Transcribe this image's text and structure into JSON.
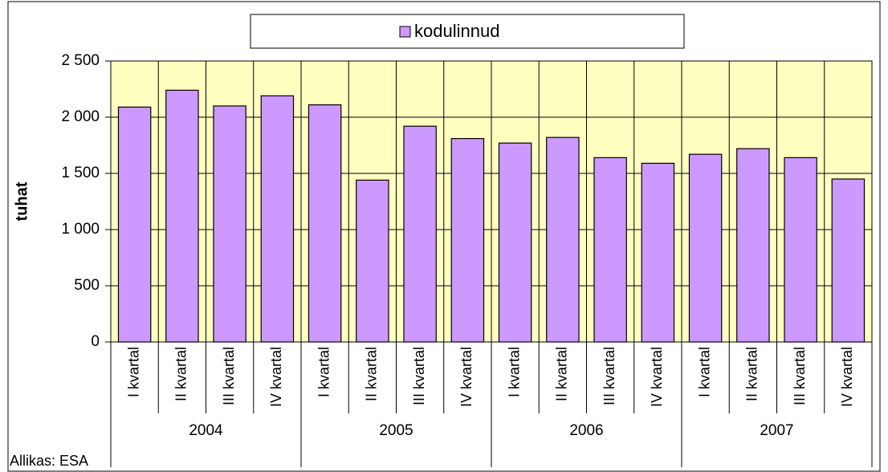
{
  "chart_data": {
    "type": "bar",
    "y_label": "tuhat",
    "source": "Allikas: ESA",
    "categories": [
      "I kvartal",
      "II kvartal",
      "III kvartal",
      "IV kvartal",
      "I kvartal",
      "II kvartal",
      "III kvartal",
      "IV kvartal",
      "I kvartal",
      "II kvartal",
      "III kvartal",
      "IV kvartal",
      "I kvartal",
      "II kvartal",
      "III kvartal",
      "IV kvartal"
    ],
    "groups": [
      "2004",
      "2005",
      "2006",
      "2007"
    ],
    "series": [
      {
        "name": "kodulinnud",
        "color": "#cc99ff",
        "values": [
          2090,
          2240,
          2100,
          2190,
          2110,
          1440,
          1920,
          1810,
          1770,
          1820,
          1640,
          1590,
          1670,
          1720,
          1640,
          1450
        ]
      }
    ],
    "ylim": [
      0,
      2500
    ],
    "yticks": [
      0,
      500,
      {
        "value": 1000,
        "label": "1 000"
      },
      {
        "value": 1500,
        "label": "1 500"
      },
      {
        "value": 2000,
        "label": "2 000"
      },
      {
        "value": 2500,
        "label": "2 500"
      }
    ],
    "grid": true,
    "plot_background": "#ffffc0"
  }
}
